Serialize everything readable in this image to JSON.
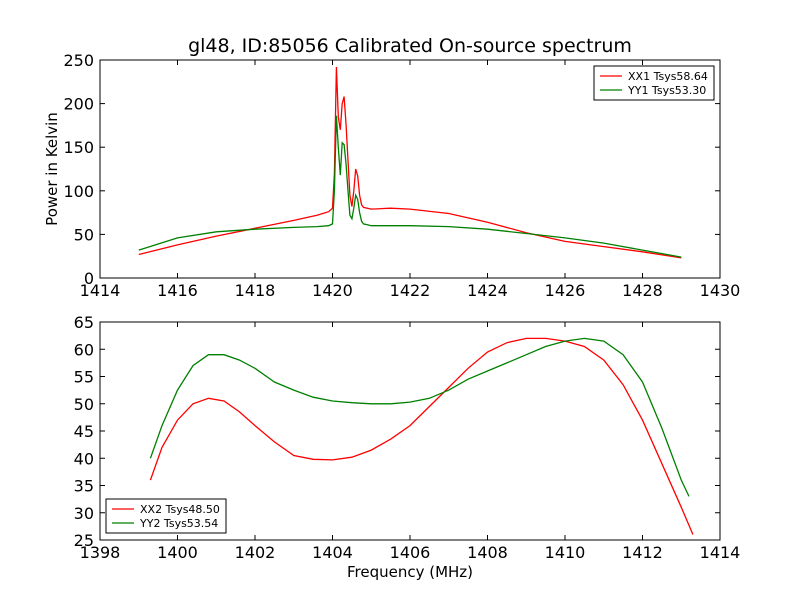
{
  "chart_data": [
    {
      "type": "line",
      "title": "gl48, ID:85056 Calibrated On-source spectrum",
      "xlabel": "",
      "ylabel": "Power in Kelvin",
      "xlim": [
        1414,
        1430
      ],
      "ylim": [
        0,
        250
      ],
      "xticks": [
        "1414",
        "1416",
        "1418",
        "1420",
        "1422",
        "1424",
        "1426",
        "1428",
        "1430"
      ],
      "yticks": [
        "0",
        "50",
        "100",
        "150",
        "200",
        "250"
      ],
      "grid": false,
      "legend_position": "top-right",
      "series": [
        {
          "name": "XX1 Tsys58.64",
          "color": "#ff0000",
          "x": [
            1415.0,
            1416.0,
            1417.0,
            1418.0,
            1419.0,
            1419.6,
            1419.9,
            1420.0,
            1420.05,
            1420.1,
            1420.15,
            1420.2,
            1420.25,
            1420.3,
            1420.35,
            1420.4,
            1420.45,
            1420.5,
            1420.55,
            1420.6,
            1420.65,
            1420.7,
            1420.75,
            1420.8,
            1420.9,
            1421.0,
            1421.5,
            1422.0,
            1423.0,
            1424.0,
            1425.0,
            1426.0,
            1427.0,
            1428.0,
            1429.0
          ],
          "y": [
            27,
            38,
            48,
            57,
            66,
            72,
            76,
            80,
            120,
            242,
            185,
            170,
            200,
            208,
            175,
            135,
            95,
            82,
            100,
            125,
            117,
            95,
            84,
            81,
            80,
            79,
            80,
            79,
            74,
            64,
            52,
            42,
            36,
            30,
            23
          ]
        },
        {
          "name": "YY1 Tsys53.30",
          "color": "#008000",
          "x": [
            1415.0,
            1416.0,
            1417.0,
            1418.0,
            1419.0,
            1419.6,
            1419.9,
            1420.0,
            1420.05,
            1420.1,
            1420.15,
            1420.2,
            1420.25,
            1420.3,
            1420.35,
            1420.4,
            1420.45,
            1420.5,
            1420.55,
            1420.6,
            1420.65,
            1420.7,
            1420.75,
            1420.8,
            1420.9,
            1421.0,
            1421.5,
            1422.0,
            1423.0,
            1424.0,
            1425.0,
            1426.0,
            1427.0,
            1428.0,
            1429.0
          ],
          "y": [
            32,
            46,
            53,
            56,
            58,
            59,
            60,
            62,
            100,
            186,
            150,
            118,
            155,
            153,
            130,
            100,
            72,
            68,
            80,
            95,
            90,
            75,
            65,
            62,
            61,
            60,
            60,
            60,
            59,
            56,
            51,
            46,
            40,
            32,
            24
          ]
        }
      ]
    },
    {
      "type": "line",
      "title": "",
      "xlabel": "Frequency (MHz)",
      "ylabel": "",
      "xlim": [
        1398,
        1414
      ],
      "ylim": [
        25,
        65
      ],
      "xticks": [
        "1398",
        "1400",
        "1402",
        "1404",
        "1406",
        "1408",
        "1410",
        "1412",
        "1414"
      ],
      "yticks": [
        "25",
        "30",
        "35",
        "40",
        "45",
        "50",
        "55",
        "60",
        "65"
      ],
      "grid": false,
      "legend_position": "bottom-left",
      "series": [
        {
          "name": "XX2 Tsys48.50",
          "color": "#ff0000",
          "x": [
            1399.3,
            1399.6,
            1400.0,
            1400.4,
            1400.8,
            1401.2,
            1401.6,
            1402.0,
            1402.5,
            1403.0,
            1403.5,
            1404.0,
            1404.5,
            1405.0,
            1405.5,
            1406.0,
            1406.5,
            1407.0,
            1407.5,
            1408.0,
            1408.5,
            1409.0,
            1409.5,
            1410.0,
            1410.5,
            1411.0,
            1411.5,
            1412.0,
            1412.5,
            1413.0,
            1413.3
          ],
          "y": [
            36,
            42,
            47,
            50,
            51,
            50.5,
            48.5,
            46,
            43,
            40.5,
            39.8,
            39.7,
            40.2,
            41.5,
            43.5,
            46,
            49.5,
            53,
            56.5,
            59.5,
            61.2,
            62,
            62,
            61.5,
            60.5,
            58,
            53.5,
            47,
            39,
            31,
            26
          ]
        },
        {
          "name": "YY2 Tsys53.54",
          "color": "#008000",
          "x": [
            1399.3,
            1399.6,
            1400.0,
            1400.4,
            1400.8,
            1401.2,
            1401.6,
            1402.0,
            1402.5,
            1403.0,
            1403.5,
            1404.0,
            1404.5,
            1405.0,
            1405.5,
            1406.0,
            1406.5,
            1407.0,
            1407.5,
            1408.0,
            1408.5,
            1409.0,
            1409.5,
            1410.0,
            1410.5,
            1411.0,
            1411.5,
            1412.0,
            1412.5,
            1413.0,
            1413.2
          ],
          "y": [
            40,
            46,
            52.5,
            57,
            59,
            59,
            58,
            56.5,
            54,
            52.5,
            51.2,
            50.5,
            50.2,
            50,
            50,
            50.3,
            51,
            52.5,
            54.5,
            56,
            57.5,
            59,
            60.5,
            61.5,
            62,
            61.5,
            59,
            54,
            45.5,
            36,
            33
          ]
        }
      ]
    }
  ]
}
